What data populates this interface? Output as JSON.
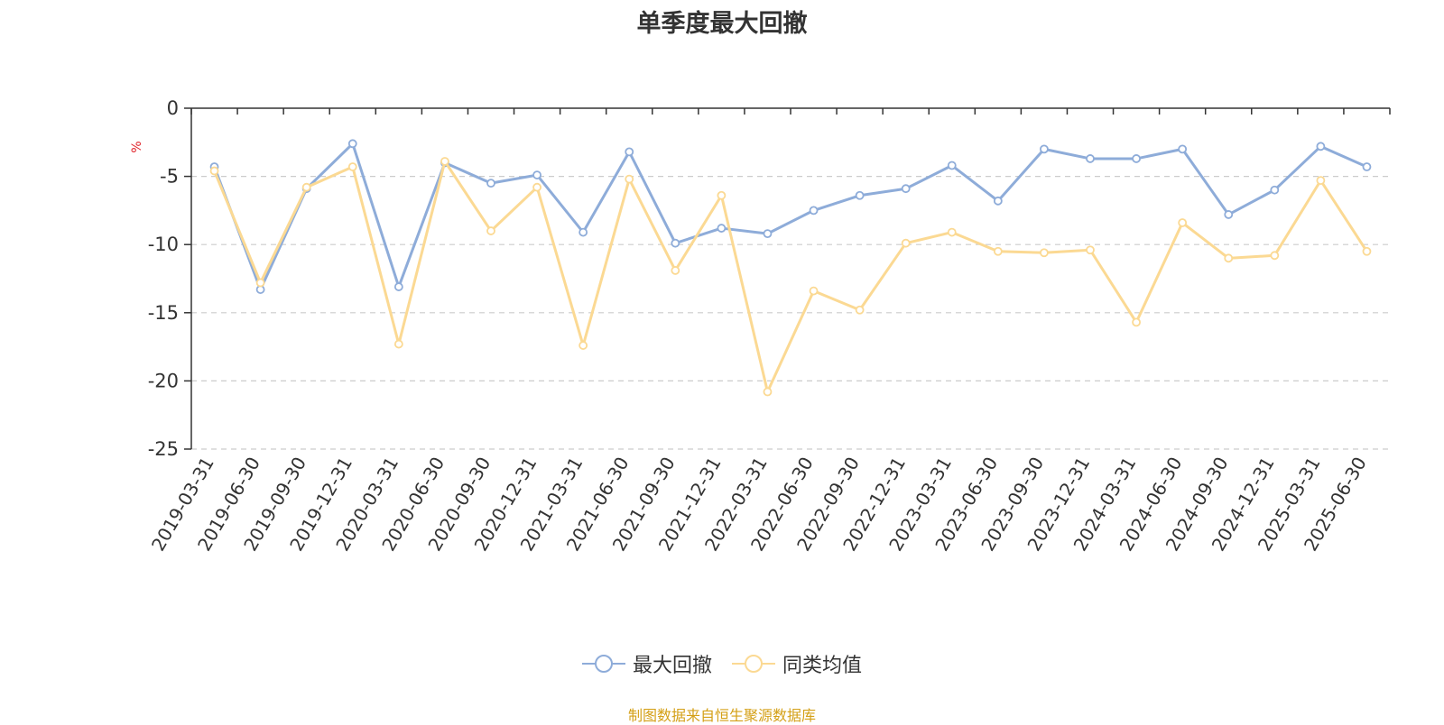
{
  "colors": {
    "series_1": "#8eacd9",
    "series_2": "#fbd993",
    "axis": "#333333",
    "grid": "#cccccc",
    "unit": "#e0242b",
    "footer": "#d4a017"
  },
  "chart_data": {
    "type": "line",
    "title": "单季度最大回撤",
    "ylabel": "%",
    "xlabel": "",
    "ylim": [
      -25,
      0
    ],
    "yticks": [
      "0",
      "-5",
      "-10",
      "-15",
      "-20",
      "-25"
    ],
    "grid": true,
    "legend_position": "bottom-center",
    "categories": [
      "2019-03-31",
      "2019-06-30",
      "2019-09-30",
      "2019-12-31",
      "2020-03-31",
      "2020-06-30",
      "2020-09-30",
      "2020-12-31",
      "2021-03-31",
      "2021-06-30",
      "2021-09-30",
      "2021-12-31",
      "2022-03-31",
      "2022-06-30",
      "2022-09-30",
      "2022-12-31",
      "2023-03-31",
      "2023-06-30",
      "2023-09-30",
      "2023-12-31",
      "2024-03-31",
      "2024-06-30",
      "2024-09-30",
      "2024-12-31",
      "2025-03-31",
      "2025-06-30"
    ],
    "series": [
      {
        "name": "最大回撤",
        "values": [
          -4.3,
          -13.3,
          -5.9,
          -2.6,
          -13.1,
          -4.0,
          -5.5,
          -4.9,
          -9.1,
          -3.2,
          -9.9,
          -8.8,
          -9.2,
          -7.5,
          -6.4,
          -5.9,
          -4.2,
          -6.8,
          -3.0,
          -3.7,
          -3.7,
          -3.0,
          -7.8,
          -6.0,
          -2.8,
          -4.3
        ]
      },
      {
        "name": "同类均值",
        "values": [
          -4.6,
          -12.8,
          -5.8,
          -4.3,
          -17.3,
          -3.9,
          -9.0,
          -5.8,
          -17.4,
          -5.2,
          -11.9,
          -6.4,
          -20.8,
          -13.4,
          -14.8,
          -9.9,
          -9.1,
          -10.5,
          -10.6,
          -10.4,
          -15.7,
          -8.4,
          -11.0,
          -10.8,
          -5.3,
          -10.5
        ]
      }
    ]
  },
  "footer": {
    "note": "制图数据来自恒生聚源数据库"
  }
}
